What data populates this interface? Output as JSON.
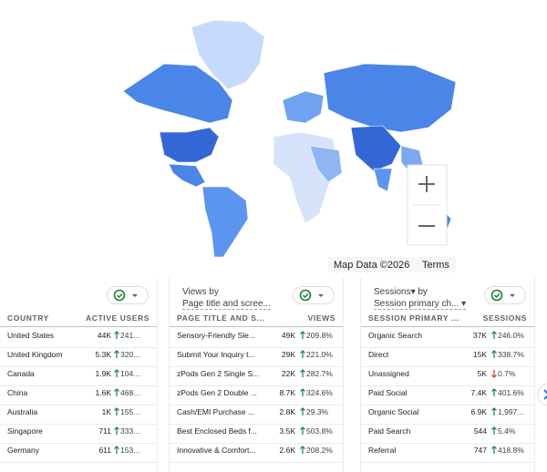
{
  "map": {
    "attribution": "Map Data ©2026",
    "terms": "Terms"
  },
  "cards": [
    {
      "title": null,
      "subtitle": null,
      "columns": [
        "COUNTRY",
        "ACTIVE USERS"
      ],
      "rows": [
        {
          "name": "United States",
          "value": "44K",
          "change": "241…",
          "trend": "up"
        },
        {
          "name": "United Kingdom",
          "value": "5.3K",
          "change": "320…",
          "trend": "up"
        },
        {
          "name": "Canada",
          "value": "1.9K",
          "change": "104…",
          "trend": "up"
        },
        {
          "name": "China",
          "value": "1.6K",
          "change": "468…",
          "trend": "up"
        },
        {
          "name": "Australia",
          "value": "1K",
          "change": "155…",
          "trend": "up"
        },
        {
          "name": "Singapore",
          "value": "711",
          "change": "333…",
          "trend": "up"
        },
        {
          "name": "Germany",
          "value": "611",
          "change": "153…",
          "trend": "up"
        }
      ]
    },
    {
      "title": "Views by",
      "subtitle": "Page title and scree...",
      "columns": [
        "PAGE TITLE AND S...",
        "VIEWS"
      ],
      "rows": [
        {
          "name": "Sensory-Friendly Sle...",
          "value": "49K",
          "change": "209.8%",
          "trend": "up"
        },
        {
          "name": "Submit Your Inquiry t...",
          "value": "29K",
          "change": "221.0%",
          "trend": "up"
        },
        {
          "name": "zPods Gen 2 Single S...",
          "value": "22K",
          "change": "282.7%",
          "trend": "up"
        },
        {
          "name": "zPods Gen 2 Double ...",
          "value": "8.7K",
          "change": "324.6%",
          "trend": "up"
        },
        {
          "name": "Cash/EMI Purchase ...",
          "value": "2.8K",
          "change": "29.3%",
          "trend": "up"
        },
        {
          "name": "Best Enclosed Beds f...",
          "value": "3.5K",
          "change": "503.8%",
          "trend": "up"
        },
        {
          "name": "Innovative & Comfort...",
          "value": "2.6K",
          "change": "208.2%",
          "trend": "up"
        }
      ]
    },
    {
      "title": "Sessions▾ by",
      "subtitle": "Session primary ch... ▾",
      "columns": [
        "SESSION PRIMARY ...",
        "SESSIONS"
      ],
      "rows": [
        {
          "name": "Organic Search",
          "value": "37K",
          "change": "246.0%",
          "trend": "up"
        },
        {
          "name": "Direct",
          "value": "15K",
          "change": "338.7%",
          "trend": "up"
        },
        {
          "name": "Unassigned",
          "value": "5K",
          "change": "0.7%",
          "trend": "down"
        },
        {
          "name": "Paid Social",
          "value": "7.4K",
          "change": "401.6%",
          "trend": "up"
        },
        {
          "name": "Organic Social",
          "value": "6.9K",
          "change": "1,997…",
          "trend": "up"
        },
        {
          "name": "Paid Search",
          "value": "544",
          "change": "5.4%",
          "trend": "up"
        },
        {
          "name": "Referral",
          "value": "747",
          "change": "418.8%",
          "trend": "up"
        }
      ]
    }
  ]
}
